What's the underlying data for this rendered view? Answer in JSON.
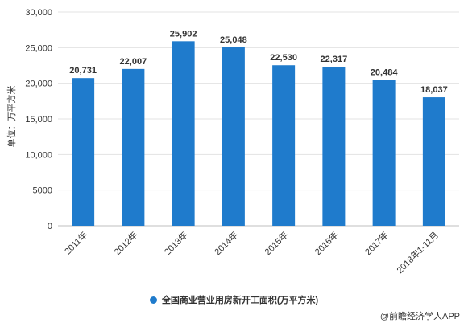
{
  "chart_data": {
    "type": "bar",
    "ylabel": "单位：万平方米",
    "ylim": [
      0,
      30000
    ],
    "yticks": [
      "0",
      "5000",
      "10,000",
      "15,000",
      "20,000",
      "25,000",
      "30,000"
    ],
    "ytick_values": [
      0,
      5000,
      10000,
      15000,
      20000,
      25000,
      30000
    ],
    "categories": [
      "2011年",
      "2012年",
      "2013年",
      "2014年",
      "2015年",
      "2016年",
      "2017年",
      "2018年1-11月"
    ],
    "series": [
      {
        "name": "全国商业营业用房新开工面积(万平方米)",
        "values": [
          20731,
          22007,
          25902,
          25048,
          22530,
          22317,
          20484,
          18037
        ],
        "labels": [
          "20,731",
          "22,007",
          "25,902",
          "25,048",
          "22,530",
          "22,317",
          "20,484",
          "18,037"
        ]
      }
    ],
    "grid": true,
    "legend_position": "bottom",
    "bar_color": "#1f7bcc"
  },
  "legend": {
    "label": "全国商业营业用房新开工面积(万平方米)",
    "color": "#1f7bcc"
  },
  "source": "@前瞻经济学人APP"
}
